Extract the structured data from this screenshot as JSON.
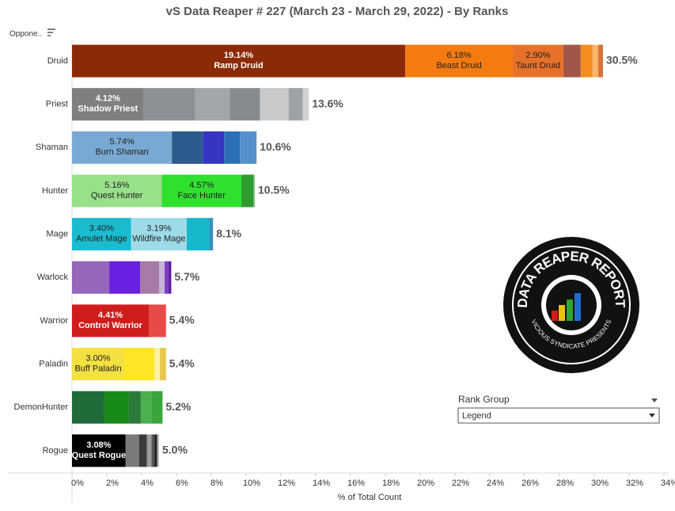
{
  "chart_data": {
    "type": "stacked-bar-horizontal",
    "title": "vS Data Reaper #  227 (March 23 - March 29, 2022) - By Ranks",
    "y_header": "Oppone..",
    "x_label": "% of Total Count",
    "filter": {
      "title": "Rank Group",
      "value": "Legend"
    },
    "logo": {
      "title": "DATA REAPER REPORT",
      "subtitle": "VICIOUS SYNDICATE PRESENTS"
    },
    "categories": [
      "Druid",
      "Priest",
      "Shaman",
      "Hunter",
      "Mage",
      "Warlock",
      "Warrior",
      "Paladin",
      "DemonHunter",
      "Rogue"
    ],
    "totals": [
      30.5,
      13.6,
      10.6,
      10.5,
      8.1,
      5.7,
      5.4,
      5.4,
      5.2,
      5.0
    ],
    "total_labels": [
      "30.5%",
      "13.6%",
      "10.6%",
      "10.5%",
      "8.1%",
      "5.7%",
      "5.4%",
      "5.4%",
      "5.2%",
      "5.0%"
    ],
    "bars": [
      [
        {
          "name": "Ramp Druid",
          "value": 19.14,
          "value_label": "19.14%",
          "color": "#8b2a05"
        },
        {
          "name": "Beast Druid",
          "value": 6.18,
          "value_label": "6.18%",
          "color": "#f57b10"
        },
        {
          "name": "Taunt Druid",
          "value": 2.9,
          "value_label": "2.90%",
          "color": "#e8712a"
        },
        {
          "value": 1.0,
          "color": "#a0574a"
        },
        {
          "value": 0.68,
          "color": "#f58c1e"
        },
        {
          "value": 0.32,
          "color": "#fbb56b"
        },
        {
          "value": 0.28,
          "color": "#d6733f"
        }
      ],
      [
        {
          "name": "Shadow Priest",
          "value": 4.12,
          "value_label": "4.12%",
          "color": "#7f7f7f"
        },
        {
          "value": 2.95,
          "color": "#8c9196"
        },
        {
          "value": 2.0,
          "color": "#a3a7aa"
        },
        {
          "value": 1.73,
          "color": "#888b8e"
        },
        {
          "value": 1.64,
          "color": "#c8cacb"
        },
        {
          "value": 0.82,
          "color": "#9ea3a6"
        },
        {
          "value": 0.34,
          "color": "#cfd1d2"
        }
      ],
      [
        {
          "name": "Burn Shaman",
          "value": 5.74,
          "value_label": "5.74%",
          "color": "#79a9d2"
        },
        {
          "value": 1.77,
          "color": "#2b5a8c"
        },
        {
          "value": 1.23,
          "color": "#3535c2"
        },
        {
          "value": 0.91,
          "color": "#2a6fb3"
        },
        {
          "value": 0.95,
          "color": "#5590cc"
        }
      ],
      [
        {
          "name": "Quest Hunter",
          "value": 5.16,
          "value_label": "5.16%",
          "color": "#98e08a"
        },
        {
          "name": "Face Hunter",
          "value": 4.57,
          "value_label": "4.57%",
          "color": "#2fe02f"
        },
        {
          "value": 0.68,
          "color": "#2e9b2e"
        },
        {
          "value": 0.09,
          "color": "#7ac07a"
        }
      ],
      [
        {
          "name": "Amulet Mage",
          "value": 3.4,
          "value_label": "3.40%",
          "color": "#1bbccf"
        },
        {
          "name": "Wildfire Mage",
          "value": 3.19,
          "value_label": "3.19%",
          "color": "#9edbe8"
        },
        {
          "value": 1.3,
          "color": "#18b8cc"
        },
        {
          "value": 0.21,
          "color": "#3a8fc0"
        }
      ],
      [
        {
          "value": 2.14,
          "color": "#9467bd"
        },
        {
          "value": 1.77,
          "color": "#6b1fe0"
        },
        {
          "value": 1.09,
          "color": "#a87aa8"
        },
        {
          "value": 0.32,
          "color": "#c7b3d6"
        },
        {
          "value": 0.23,
          "color": "#7b3fc6"
        },
        {
          "value": 0.15,
          "color": "#5a189a"
        }
      ],
      [
        {
          "name": "Control Warrior",
          "value": 4.41,
          "value_label": "4.41%",
          "color": "#d01c1c"
        },
        {
          "value": 0.99,
          "color": "#e84a4a"
        }
      ],
      [
        {
          "name": "Buff Paladin",
          "value": 3.0,
          "value_label": "3.00%",
          "color": "#f5e042"
        },
        {
          "value": 1.73,
          "color": "#fde625"
        },
        {
          "value": 0.32,
          "color": "#fdf3a0"
        },
        {
          "value": 0.35,
          "color": "#e8c84a"
        }
      ],
      [
        {
          "value": 1.86,
          "color": "#1f6b3a"
        },
        {
          "value": 1.41,
          "color": "#178a17"
        },
        {
          "value": 0.68,
          "color": "#2a7a3a"
        },
        {
          "value": 0.64,
          "color": "#4caf50"
        },
        {
          "value": 0.61,
          "color": "#3aa53a"
        }
      ],
      [
        {
          "name": "Quest Rogue",
          "value": 3.08,
          "value_label": "3.08%",
          "color": "#000000"
        },
        {
          "value": 0.77,
          "color": "#7a7a7a"
        },
        {
          "value": 0.45,
          "color": "#3a3a3a"
        },
        {
          "value": 0.27,
          "color": "#9a9a9a"
        },
        {
          "value": 0.18,
          "color": "#555555"
        },
        {
          "value": 0.14,
          "color": "#222222"
        },
        {
          "value": 0.11,
          "color": "#bbbbbb"
        }
      ]
    ],
    "xlim": [
      0,
      34
    ],
    "xticks": [
      {
        "value": 0,
        "label": "0%"
      },
      {
        "value": 2,
        "label": "2%"
      },
      {
        "value": 4,
        "label": "4%"
      },
      {
        "value": 6,
        "label": "6%"
      },
      {
        "value": 8,
        "label": "8%"
      },
      {
        "value": 10,
        "label": "10%"
      },
      {
        "value": 12,
        "label": "12%"
      },
      {
        "value": 14,
        "label": "14%"
      },
      {
        "value": 16,
        "label": "16%"
      },
      {
        "value": 18,
        "label": "18%"
      },
      {
        "value": 20,
        "label": "20%"
      },
      {
        "value": 22,
        "label": "22%"
      },
      {
        "value": 24,
        "label": "24%"
      },
      {
        "value": 26,
        "label": "26%"
      },
      {
        "value": 28,
        "label": "28%"
      },
      {
        "value": 30,
        "label": "30%"
      },
      {
        "value": 32,
        "label": "32%"
      },
      {
        "value": 34,
        "label": "34%"
      }
    ],
    "grid": false
  }
}
